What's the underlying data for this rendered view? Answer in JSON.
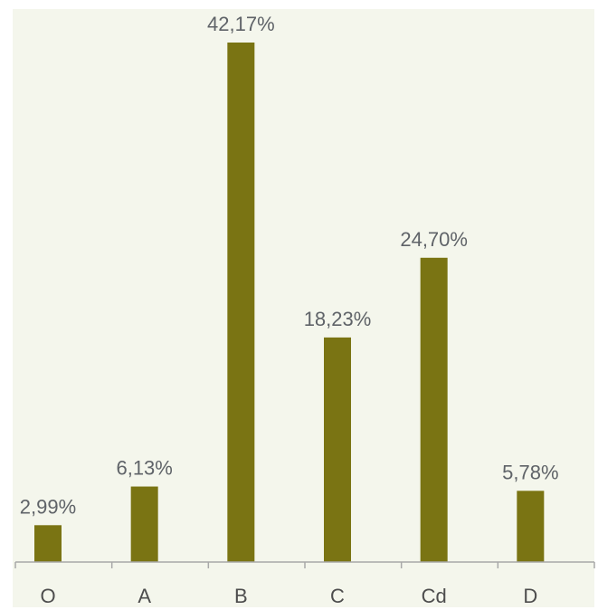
{
  "chart_data": {
    "type": "bar",
    "title": "",
    "xlabel": "",
    "ylabel": "",
    "categories": [
      "O",
      "A",
      "B",
      "C",
      "Cd",
      "D"
    ],
    "values": [
      2.99,
      6.13,
      42.17,
      18.23,
      24.7,
      5.78
    ],
    "data_labels": [
      "2,99%",
      "6,13%",
      "42,17%",
      "18,23%",
      "24,70%",
      "5,78%"
    ],
    "ylim": [
      0,
      42.17
    ],
    "grid": false,
    "legend": "none",
    "colors": {
      "bar": "#7a7413",
      "plot_background": "#f4f6ec",
      "axis": "#a8a8a8"
    }
  }
}
